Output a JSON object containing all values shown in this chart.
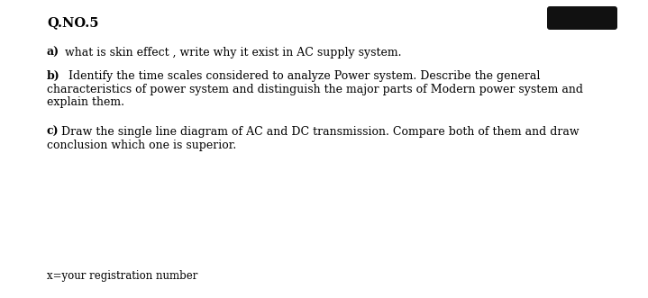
{
  "background_color": "#ffffff",
  "title": "Q.NO.5",
  "title_fontsize": 10.5,
  "title_fontweight": "bold",
  "line_a_label": "a)",
  "line_a_text": " what is skin effect , write why it exist in AC supply system.",
  "line_b_label": "b)",
  "line_b_line1": "  Identify the time scales considered to analyze Power system. Describe the general",
  "line_b_line2": "characteristics of power system and distinguish the major parts of Modern power system and",
  "line_b_line3": "explain them.",
  "line_c_label": "c)",
  "line_c_line1": "Draw the single line diagram of AC and DC transmission. Compare both of them and draw",
  "line_c_line2": "conclusion which one is superior.",
  "footer_text": "x=your registration number",
  "body_fontsize": 9.0,
  "redacted_box_color": "#111111",
  "orange_color": "#cc3300",
  "font_family": "DejaVu Serif"
}
